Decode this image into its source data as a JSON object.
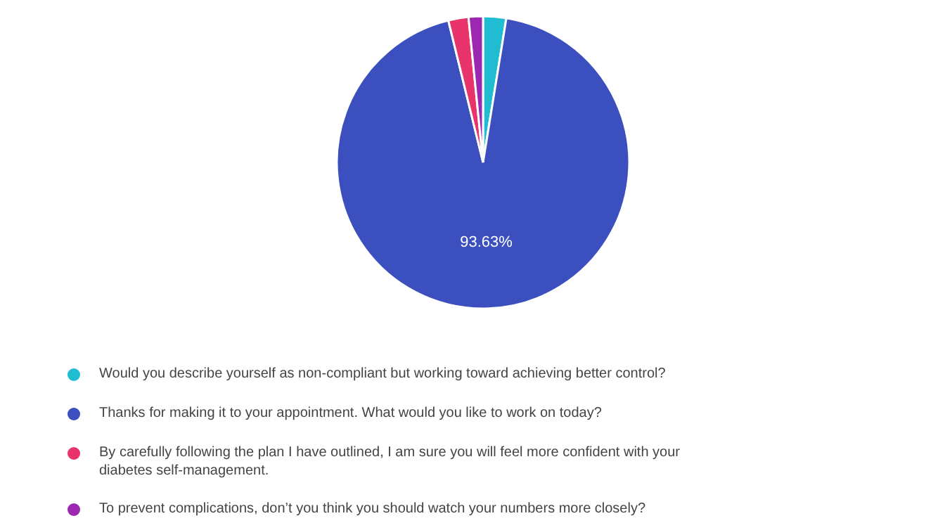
{
  "chart_data": {
    "type": "pie",
    "categories": [
      "Would you describe yourself as non-compliant but working toward achieving better control?",
      "Thanks for making it to your appointment. What would you like to work on today?",
      "By carefully following the plan I have outlined, I am sure you will feel more confident with your diabetes self-management.",
      "To prevent complications, don’t you think you should watch your numbers more closely?"
    ],
    "values": [
      2.55,
      93.63,
      2.23,
      1.59
    ],
    "colors": [
      "#1fbcd2",
      "#3b4fbf",
      "#e8336b",
      "#9c27b0"
    ],
    "value_labels": [
      null,
      "93.63%",
      null,
      null
    ],
    "legend": "bottom"
  }
}
